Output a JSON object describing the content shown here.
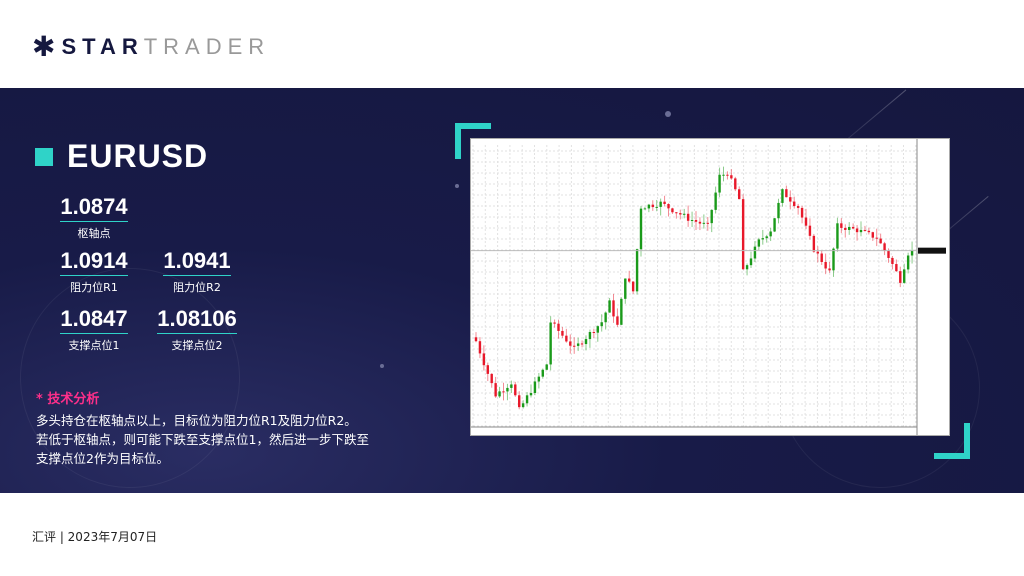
{
  "logo": {
    "text_bold": "STAR",
    "text_light": "TRADER"
  },
  "instrument": "EURUSD",
  "levels": [
    {
      "value": "1.0874",
      "label": "枢轴点"
    },
    {
      "value": "1.0914",
      "label": "阻力位R1"
    },
    {
      "value": "1.0941",
      "label": "阻力位R2"
    },
    {
      "value": "1.0847",
      "label": "支撑点位1"
    },
    {
      "value": "1.08106",
      "label": "支撑点位2"
    }
  ],
  "analysis": {
    "heading": "* 技术分析",
    "lines": [
      "多头持仓在枢轴点以上，目标位为阻力位R1及阻力位R2。",
      "若低于枢轴点，则可能下跌至支撑点位1，然后进一步下跌至",
      "支撑点位2作为目标位。"
    ]
  },
  "footer": "汇评 | 2023年7月07日",
  "colors": {
    "accent": "#2fd3c8",
    "band": "#15173f",
    "heading": "#ff2f8a",
    "bull": "#1a9a1a",
    "bear": "#e8182a"
  },
  "chart": {
    "type": "candlestick",
    "current_price": 1.0888,
    "price_range": [
      1.0658,
      1.1018
    ],
    "candle_count": 112,
    "keypoints": [
      [
        0,
        1.077
      ],
      [
        5,
        1.07
      ],
      [
        9,
        1.0716
      ],
      [
        11,
        1.068
      ],
      [
        18,
        1.074
      ],
      [
        19,
        1.0795
      ],
      [
        25,
        1.076
      ],
      [
        32,
        1.0795
      ],
      [
        34,
        1.082
      ],
      [
        36,
        1.079
      ],
      [
        38,
        1.0855
      ],
      [
        40,
        1.0835
      ],
      [
        42,
        1.0945
      ],
      [
        47,
        1.095
      ],
      [
        54,
        1.093
      ],
      [
        59,
        1.092
      ],
      [
        62,
        1.0985
      ],
      [
        64,
        1.099
      ],
      [
        67,
        1.0955
      ],
      [
        68,
        1.086
      ],
      [
        72,
        1.09
      ],
      [
        75,
        1.0915
      ],
      [
        78,
        1.0965
      ],
      [
        82,
        1.0945
      ],
      [
        86,
        1.089
      ],
      [
        90,
        1.086
      ],
      [
        92,
        1.092
      ],
      [
        97,
        1.0915
      ],
      [
        102,
        1.0905
      ],
      [
        105,
        1.088
      ],
      [
        108,
        1.085
      ],
      [
        110,
        1.0885
      ],
      [
        111,
        1.0887
      ]
    ]
  }
}
